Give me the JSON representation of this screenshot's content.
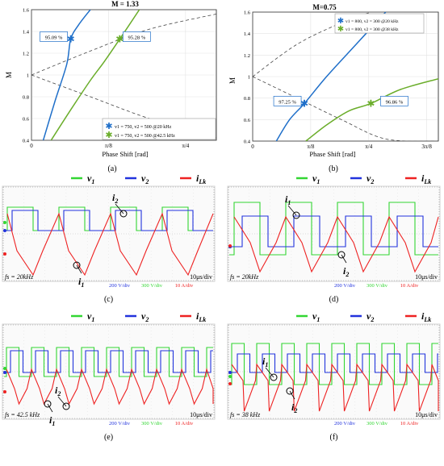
{
  "colors": {
    "blue": "#1f6fc9",
    "green": "#6aad2a",
    "dash": "#444444",
    "scope_bg": "#8c8c8c",
    "scope_border": "#d2d2d2",
    "trace_v1": "#33d633",
    "trace_v2": "#2233dd",
    "trace_i": "#ee2222"
  },
  "chart_data": [
    {
      "id": "a",
      "type": "line",
      "title": "M = 1.33",
      "xlabel": "Phase Shift [rad]",
      "ylabel": "M",
      "xlim": [
        0,
        0.9425
      ],
      "ylim": [
        0.4,
        1.6
      ],
      "xtick_values": [
        0,
        0.3927,
        0.7854
      ],
      "xtick_labels": [
        "0",
        "π/8",
        "π/4"
      ],
      "ytick_values": [
        0.4,
        0.6,
        0.8,
        1.0,
        1.2,
        1.4,
        1.6
      ],
      "ytick_labels": [
        "0.4",
        "0.6",
        "0.8",
        "1",
        "1.2",
        "1.4",
        "1.6"
      ],
      "grid": true,
      "legend_position": "bottom-right",
      "series": [
        {
          "name": "v1 = 750, v2 = 500 @20 kHz",
          "color": "blue",
          "x": [
            0.06,
            0.12,
            0.18,
            0.2,
            0.24,
            0.3
          ],
          "y": [
            0.4,
            0.76,
            1.1,
            1.33,
            1.46,
            1.6
          ]
        },
        {
          "name": "v1 = 750, v2 = 500 @42.5 kHz",
          "color": "green",
          "x": [
            0.1,
            0.2,
            0.3,
            0.37,
            0.45,
            0.55
          ],
          "y": [
            0.4,
            0.68,
            0.95,
            1.12,
            1.33,
            1.6
          ]
        }
      ],
      "markers": [
        {
          "series": 0,
          "x": 0.2,
          "y": 1.33,
          "label": "95.09 %"
        },
        {
          "series": 1,
          "x": 0.45,
          "y": 1.33,
          "label": "95.28 %"
        }
      ],
      "boundaries": [
        {
          "x": [
            0,
            0.3,
            0.6,
            0.9425
          ],
          "y": [
            1.0,
            1.22,
            1.42,
            1.56
          ]
        },
        {
          "x": [
            0,
            0.3,
            0.6,
            0.9425
          ],
          "y": [
            1.0,
            0.8,
            0.6,
            0.42
          ]
        }
      ],
      "panel_label": "(a)"
    },
    {
      "id": "b",
      "type": "line",
      "title": "M=0.75",
      "xlabel": "Phase Shift [rad]",
      "ylabel": "M",
      "xlim": [
        0,
        1.2566
      ],
      "ylim": [
        0.4,
        1.6
      ],
      "xtick_values": [
        0,
        0.3927,
        0.7854,
        1.1781
      ],
      "xtick_labels": [
        "0",
        "π/8",
        "π/4",
        "3π/8"
      ],
      "ytick_values": [
        0.4,
        0.6,
        0.8,
        1.0,
        1.2,
        1.4,
        1.6
      ],
      "ytick_labels": [
        "0.4",
        "0.6",
        "0.8",
        "1",
        "1.2",
        "1.4",
        "1.6"
      ],
      "grid": true,
      "legend_position": "top-right",
      "series": [
        {
          "name": "v1 = 800, v2 = 300 @20 kHz",
          "color": "blue",
          "x": [
            0.16,
            0.25,
            0.35,
            0.5,
            0.7,
            0.9
          ],
          "y": [
            0.4,
            0.6,
            0.75,
            1.0,
            1.3,
            1.6
          ]
        },
        {
          "name": "v1 = 800, v2 = 300 @38 kHz",
          "color": "green",
          "x": [
            0.36,
            0.5,
            0.65,
            0.8,
            1.0,
            1.2566
          ],
          "y": [
            0.4,
            0.55,
            0.68,
            0.75,
            0.88,
            0.98
          ]
        }
      ],
      "markers": [
        {
          "series": 0,
          "x": 0.35,
          "y": 0.75,
          "label": "97.25 %"
        },
        {
          "series": 1,
          "x": 0.8,
          "y": 0.75,
          "label": "96.86 %"
        }
      ],
      "boundaries": [
        {
          "x": [
            0,
            0.3,
            0.6,
            0.8
          ],
          "y": [
            1.0,
            1.3,
            1.5,
            1.6
          ]
        },
        {
          "x": [
            0,
            0.3,
            0.6,
            0.9,
            1.2566
          ],
          "y": [
            1.0,
            0.8,
            0.6,
            0.42,
            0.4
          ]
        }
      ],
      "panel_label": "(b)"
    }
  ],
  "scopes": [
    {
      "id": "c",
      "panel_label": "(c)",
      "legend": [
        "v",
        "1",
        "v",
        "2",
        "i",
        "Lk"
      ],
      "freq_label": "fs = 20kHz",
      "timebase": "10μs/div",
      "scales": [
        "200 V/div",
        "300 V/div",
        "10 A/div"
      ],
      "points": [
        {
          "name": "i",
          "sub": "2"
        },
        {
          "name": "i",
          "sub": "1"
        }
      ]
    },
    {
      "id": "d",
      "panel_label": "(d)",
      "legend": [
        "v",
        "1",
        "v",
        "2",
        "i",
        "Lk"
      ],
      "freq_label": "fs = 20kHz",
      "timebase": "10μs/div",
      "scales": [
        "200 V/div",
        "300 V/div",
        "10 A/div"
      ],
      "points": [
        {
          "name": "i",
          "sub": "1"
        },
        {
          "name": "i",
          "sub": "2"
        }
      ]
    },
    {
      "id": "e",
      "panel_label": "(e)",
      "legend": [
        "v",
        "1",
        "v",
        "2",
        "i",
        "Lk"
      ],
      "freq_label": "fs = 42.5 kHz",
      "timebase": "10μs/div",
      "scales": [
        "200 V/div",
        "300 V/div",
        "10 A/div"
      ],
      "points": [
        {
          "name": "i",
          "sub": "2"
        },
        {
          "name": "i",
          "sub": "1"
        }
      ]
    },
    {
      "id": "f",
      "panel_label": "(f)",
      "legend": [
        "v",
        "1",
        "v",
        "2",
        "i",
        "Lk"
      ],
      "freq_label": "fs = 38 kHz",
      "timebase": "10μs/div",
      "scales": [
        "200 V/div",
        "300 V/div",
        "10 A/div"
      ],
      "points": [
        {
          "name": "i",
          "sub": "1"
        },
        {
          "name": "i",
          "sub": "2"
        }
      ]
    }
  ]
}
